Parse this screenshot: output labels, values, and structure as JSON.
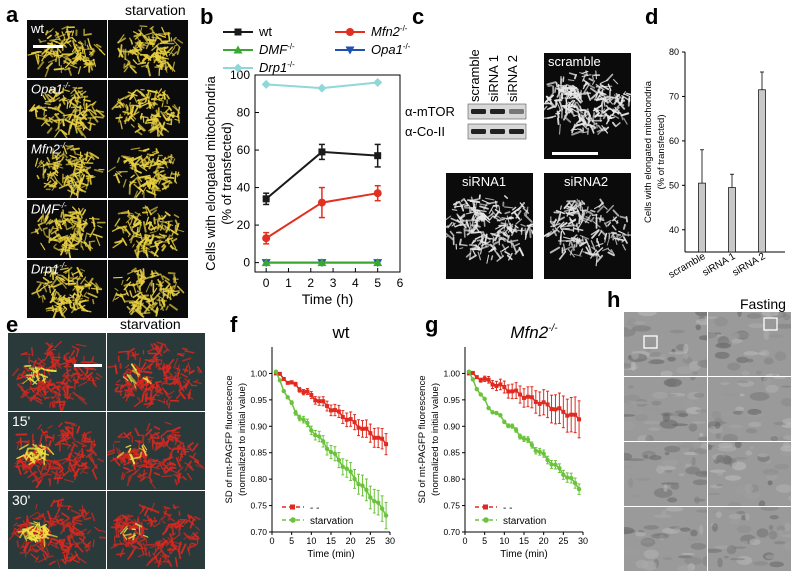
{
  "panel_labels": {
    "a": "a",
    "b": "b",
    "c": "c",
    "d": "d",
    "e": "e",
    "f": "f",
    "g": "g",
    "h": "h"
  },
  "panel_a": {
    "column_title": "starvation",
    "rows": [
      {
        "name": "wt",
        "sup": ""
      },
      {
        "name": "Opa1",
        "sup": "-/-"
      },
      {
        "name": "Mfn2",
        "sup": "-/-"
      },
      {
        "name": "DMF",
        "sup": "-/-"
      },
      {
        "name": "Drp1",
        "sup": "-/-"
      }
    ]
  },
  "panel_c": {
    "blot_lanes": [
      "scramble",
      "siRNA 1",
      "siRNA 2"
    ],
    "blot_rows": [
      "α-mTOR",
      "α-Co-II"
    ],
    "images": [
      "scramble",
      "siRNA1",
      "siRNA2"
    ]
  },
  "panel_e": {
    "column_title": "starvation",
    "times": [
      "",
      "15'",
      "30'"
    ]
  },
  "panel_h": {
    "title": "Fasting"
  },
  "colors": {
    "wt": "#1a1a1a",
    "mfn2": "#e03020",
    "dmf": "#3aa830",
    "opa1": "#2050b0",
    "drp1": "#8fd8d8",
    "green": "#6ac33a",
    "red": "#e02a20",
    "bar": "#c8c8c8"
  },
  "chart_data": [
    {
      "id": "b",
      "type": "line",
      "xlabel": "Time (h)",
      "ylabel": "Cells with elongated mitochondria",
      "ylabel2": "(% of transfected)",
      "xlim": [
        -0.5,
        6
      ],
      "ylim": [
        -5,
        100
      ],
      "xticks": [
        0,
        1,
        2,
        3,
        4,
        5,
        6
      ],
      "yticks": [
        0,
        20,
        40,
        60,
        80,
        100
      ],
      "x": [
        0,
        2.5,
        5
      ],
      "series": [
        {
          "name": "wt",
          "sup": "",
          "italic": false,
          "color": "#1a1a1a",
          "marker": "square",
          "values": [
            34,
            59,
            57
          ],
          "err": [
            3,
            4,
            6
          ]
        },
        {
          "name": "Mfn2",
          "sup": "-/-",
          "italic": true,
          "color": "#e03020",
          "marker": "circle",
          "values": [
            13,
            32,
            37
          ],
          "err": [
            3,
            8,
            4
          ]
        },
        {
          "name": "DMF",
          "sup": "-/-",
          "italic": true,
          "color": "#3aa830",
          "marker": "triangle-up",
          "values": [
            0,
            0,
            0
          ],
          "err": [
            0,
            0,
            0
          ]
        },
        {
          "name": "Opa1",
          "sup": "-/-",
          "italic": true,
          "color": "#2050b0",
          "marker": "triangle-down",
          "values": [
            0,
            0,
            0
          ],
          "err": [
            0,
            0,
            0
          ]
        },
        {
          "name": "Drp1",
          "sup": "-/-",
          "italic": true,
          "color": "#8fd8d8",
          "marker": "diamond",
          "values": [
            95,
            93,
            96
          ],
          "err": [
            0,
            0,
            0
          ]
        }
      ]
    },
    {
      "id": "d",
      "type": "bar",
      "ylabel": "Cells with elongated mitochondria",
      "ylabel2": "(% of transfected)",
      "categories": [
        "scramble",
        "siRNA 1",
        "siRNA 2"
      ],
      "values": [
        50.5,
        49.5,
        71.5
      ],
      "err": [
        7.5,
        3,
        4
      ],
      "ylim": [
        35,
        80
      ],
      "yticks": [
        40,
        50,
        60,
        70,
        80
      ]
    },
    {
      "id": "f",
      "type": "line",
      "title": "wt",
      "title_italic": false,
      "title_sup": "",
      "xlabel": "Time (min)",
      "ylabel": "SD of mt-PAGFP fluorescence",
      "ylabel2": "(normalized to initial value)",
      "xlim": [
        0,
        30
      ],
      "ylim": [
        0.7,
        1.05
      ],
      "xticks": [
        0,
        5,
        10,
        15,
        20,
        25,
        30
      ],
      "yticks": [
        0.7,
        0.75,
        0.8,
        0.85,
        0.9,
        0.95,
        1.0
      ],
      "ytick_labels": [
        "0.70",
        "0.75",
        "0.80",
        "0.85",
        "0.90",
        "0.95",
        "1.00"
      ],
      "legend": [
        "- -",
        "starvation"
      ],
      "series": [
        {
          "name": "- -",
          "color": "#e02a20",
          "marker": "square",
          "start": 1,
          "end": 29,
          "n": 29,
          "v0": 1.0,
          "v1": 0.868,
          "err": 0.02
        },
        {
          "name": "starvation",
          "color": "#6ac33a",
          "marker": "circle",
          "start": 1,
          "end": 29,
          "n": 29,
          "v0": 1.0,
          "v1": 0.735,
          "err": 0.025
        }
      ]
    },
    {
      "id": "g",
      "type": "line",
      "title": "Mfn2",
      "title_italic": true,
      "title_sup": "-/-",
      "xlabel": "Time (min)",
      "ylabel": "SD of mt-PAGFP fluorescence",
      "ylabel2": "(normalized to initial value)",
      "xlim": [
        0,
        30
      ],
      "ylim": [
        0.7,
        1.05
      ],
      "xticks": [
        0,
        5,
        10,
        15,
        20,
        25,
        30
      ],
      "yticks": [
        0.7,
        0.75,
        0.8,
        0.85,
        0.9,
        0.95,
        1.0
      ],
      "ytick_labels": [
        "0.70",
        "0.75",
        "0.80",
        "0.85",
        "0.90",
        "0.95",
        "1.00"
      ],
      "legend": [
        "- -",
        "starvation"
      ],
      "series": [
        {
          "name": "- -",
          "color": "#e02a20",
          "marker": "square",
          "start": 1,
          "end": 29,
          "n": 29,
          "v0": 1.0,
          "v1": 0.915,
          "err": 0.035
        },
        {
          "name": "starvation",
          "color": "#6ac33a",
          "marker": "circle",
          "start": 1,
          "end": 29,
          "n": 29,
          "v0": 1.0,
          "v1": 0.785,
          "err": 0.01
        }
      ]
    }
  ]
}
